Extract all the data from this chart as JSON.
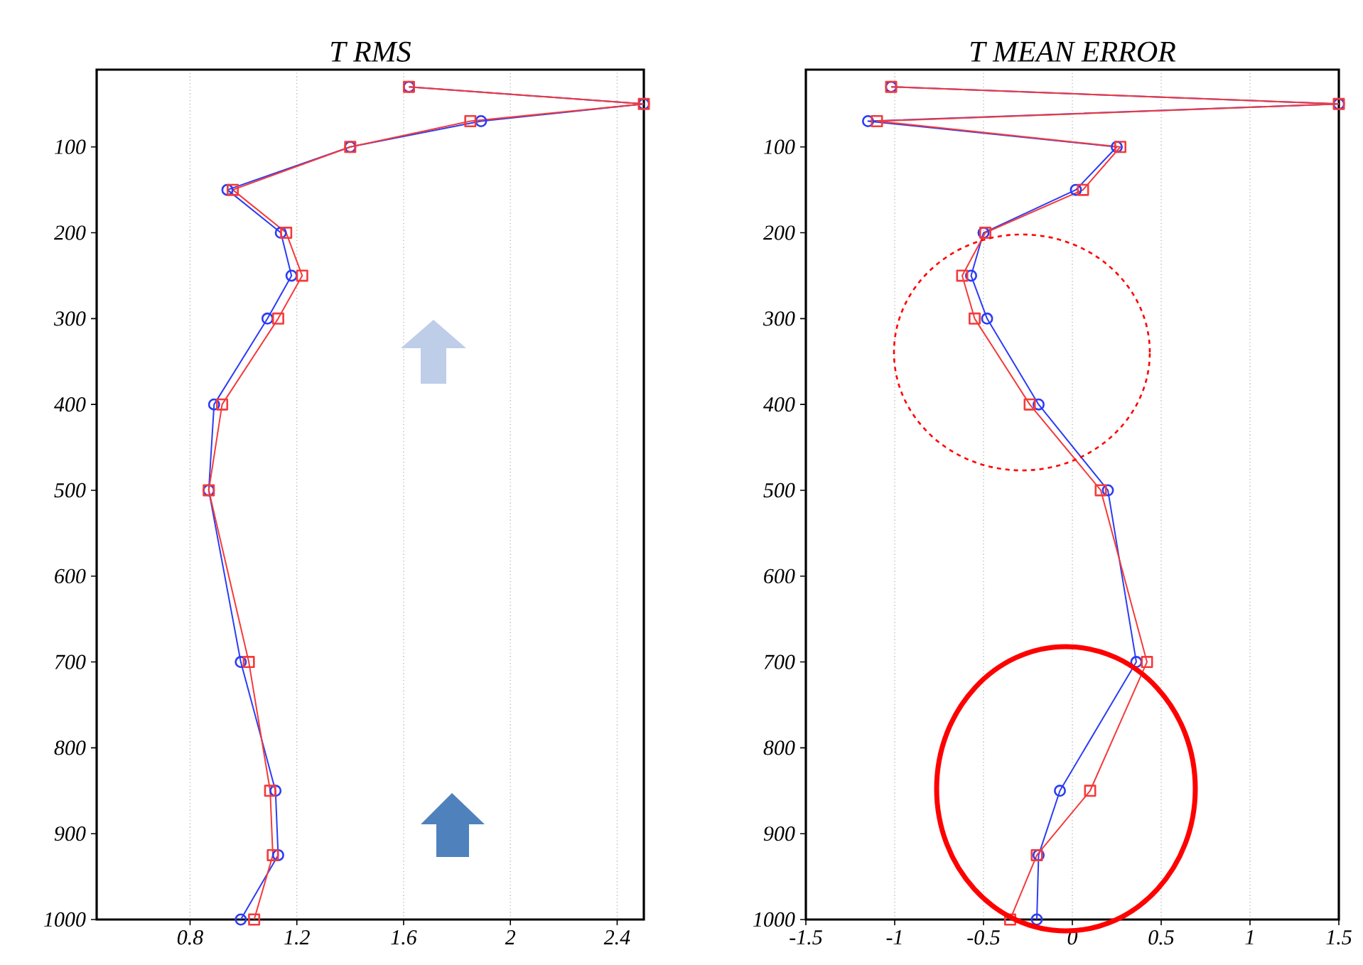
{
  "chart_data": [
    {
      "type": "line",
      "title": "T RMS",
      "xlim": [
        0.45,
        2.5
      ],
      "xticks": [
        0.8,
        1.2,
        1.6,
        2,
        2.4
      ],
      "ylim": [
        1000,
        10
      ],
      "yticks": [
        100,
        200,
        300,
        400,
        500,
        600,
        700,
        800,
        900,
        1000
      ],
      "grid": "x",
      "line_style": "solid",
      "series": [
        {
          "color": "#2b3cf5",
          "marker": "circle",
          "x": [
            1.62,
            2.5,
            1.89,
            1.4,
            0.94,
            1.14,
            1.18,
            1.09,
            0.89,
            0.87,
            0.99,
            1.12,
            1.13,
            0.99
          ],
          "values": [
            30,
            50,
            70,
            100,
            150,
            200,
            250,
            300,
            400,
            500,
            700,
            850,
            925,
            1000
          ]
        },
        {
          "color": "#f53a3a",
          "marker": "square",
          "x": [
            1.62,
            2.5,
            1.85,
            1.4,
            0.96,
            1.16,
            1.22,
            1.13,
            0.92,
            0.87,
            1.02,
            1.1,
            1.11,
            1.04
          ],
          "values": [
            30,
            50,
            70,
            100,
            150,
            200,
            250,
            300,
            400,
            500,
            700,
            850,
            925,
            1000
          ]
        }
      ]
    },
    {
      "type": "line",
      "title": "T MEAN ERROR",
      "xlim": [
        -1.5,
        1.5
      ],
      "xticks": [
        -1.5,
        -1,
        -0.5,
        0,
        0.5,
        1,
        1.5
      ],
      "ylim": [
        1000,
        10
      ],
      "yticks": [
        100,
        200,
        300,
        400,
        500,
        600,
        700,
        800,
        900,
        1000
      ],
      "grid": "x",
      "line_style": "solid",
      "series": [
        {
          "color": "#2b3cf5",
          "marker": "circle",
          "x": [
            -1.02,
            1.5,
            -1.15,
            0.25,
            0.02,
            -0.5,
            -0.57,
            -0.48,
            -0.19,
            0.2,
            0.36,
            -0.07,
            -0.19,
            -0.2
          ],
          "values": [
            30,
            50,
            70,
            100,
            150,
            200,
            250,
            300,
            400,
            500,
            700,
            850,
            925,
            1000
          ]
        },
        {
          "color": "#f53a3a",
          "marker": "square",
          "x": [
            -1.02,
            1.5,
            -1.1,
            0.27,
            0.06,
            -0.49,
            -0.62,
            -0.55,
            -0.24,
            0.16,
            0.42,
            0.1,
            -0.2,
            -0.35
          ],
          "values": [
            30,
            50,
            70,
            100,
            150,
            200,
            250,
            300,
            400,
            500,
            700,
            850,
            925,
            1000
          ]
        }
      ]
    }
  ]
}
